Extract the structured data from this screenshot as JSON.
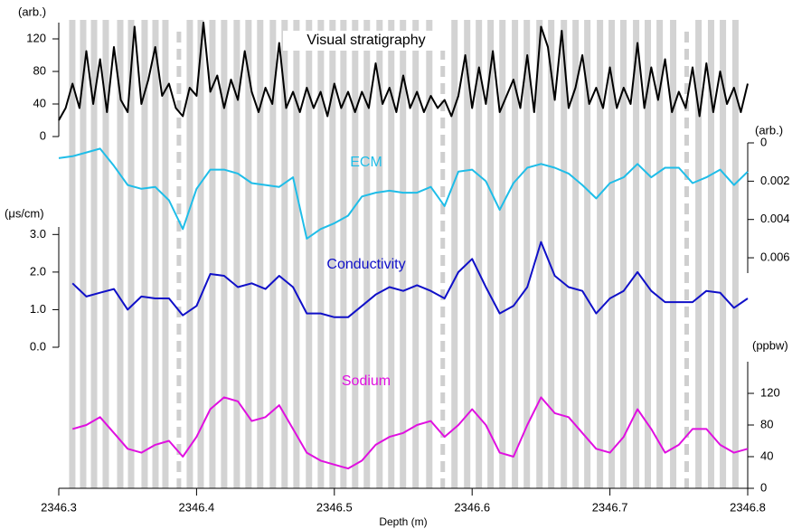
{
  "chart_data": [
    {
      "type": "line",
      "y_axis_side": "left",
      "ylabel": "(arb.)",
      "series": [
        {
          "name": "Visual stratigraphy",
          "color": "#000000",
          "values": [
            20,
            35,
            65,
            35,
            105,
            40,
            95,
            30,
            110,
            45,
            30,
            135,
            40,
            70,
            110,
            50,
            65,
            35,
            25,
            60,
            50,
            140,
            55,
            75,
            35,
            70,
            45,
            105,
            55,
            30,
            60,
            40,
            115,
            35,
            55,
            30,
            60,
            35,
            55,
            25,
            65,
            35,
            55,
            30,
            55,
            35,
            90,
            40,
            60,
            30,
            75,
            35,
            55,
            30,
            50,
            35,
            45,
            25,
            50,
            100,
            35,
            85,
            40,
            105,
            30,
            50,
            70,
            35,
            100,
            30,
            135,
            110,
            45,
            130,
            35,
            60,
            100,
            40,
            60,
            35,
            85,
            35,
            60,
            40,
            115,
            35,
            85,
            45,
            95,
            30,
            55,
            35,
            85,
            25,
            90,
            30,
            80,
            40,
            60,
            30,
            65
          ]
        }
      ],
      "x": [
        2346.3,
        2346.305,
        2346.31,
        2346.315,
        2346.32,
        2346.325,
        2346.33,
        2346.335,
        2346.34,
        2346.345,
        2346.35,
        2346.355,
        2346.36,
        2346.365,
        2346.37,
        2346.375,
        2346.38,
        2346.385,
        2346.39,
        2346.395,
        2346.4,
        2346.405,
        2346.41,
        2346.415,
        2346.42,
        2346.425,
        2346.43,
        2346.435,
        2346.44,
        2346.445,
        2346.45,
        2346.455,
        2346.46,
        2346.465,
        2346.47,
        2346.475,
        2346.48,
        2346.485,
        2346.49,
        2346.495,
        2346.5,
        2346.505,
        2346.51,
        2346.515,
        2346.52,
        2346.525,
        2346.53,
        2346.535,
        2346.54,
        2346.545,
        2346.55,
        2346.555,
        2346.56,
        2346.565,
        2346.57,
        2346.575,
        2346.58,
        2346.585,
        2346.59,
        2346.595,
        2346.6,
        2346.605,
        2346.61,
        2346.615,
        2346.62,
        2346.625,
        2346.63,
        2346.635,
        2346.64,
        2346.645,
        2346.65,
        2346.655,
        2346.66,
        2346.665,
        2346.67,
        2346.675,
        2346.68,
        2346.685,
        2346.69,
        2346.695,
        2346.7,
        2346.705,
        2346.71,
        2346.715,
        2346.72,
        2346.725,
        2346.73,
        2346.735,
        2346.74,
        2346.745,
        2346.75,
        2346.755,
        2346.76,
        2346.765,
        2346.77,
        2346.775,
        2346.78,
        2346.785,
        2346.79,
        2346.795,
        2346.8
      ],
      "xlim": [
        2346.3,
        2346.8
      ],
      "ylim": [
        0,
        140
      ],
      "yticks": [
        0,
        40,
        80,
        120
      ]
    },
    {
      "type": "line",
      "y_axis_side": "right",
      "y_reversed": true,
      "ylabel": "(arb.)",
      "series": [
        {
          "name": "ECM",
          "color": "#1fbde8",
          "values": [
            0.0008,
            0.0007,
            0.0005,
            0.0003,
            0.0012,
            0.0022,
            0.0024,
            0.0023,
            0.003,
            0.0045,
            0.0024,
            0.0014,
            0.0014,
            0.0016,
            0.0021,
            0.0022,
            0.0023,
            0.0018,
            0.005,
            0.0045,
            0.0042,
            0.0038,
            0.0028,
            0.0026,
            0.0025,
            0.0026,
            0.0026,
            0.0023,
            0.0033,
            0.0015,
            0.0014,
            0.002,
            0.0035,
            0.0021,
            0.0013,
            0.0011,
            0.0013,
            0.0016,
            0.0022,
            0.0029,
            0.0021,
            0.0018,
            0.0011,
            0.0018,
            0.0013,
            0.0013,
            0.0021,
            0.0018,
            0.0014,
            0.0022,
            0.0015
          ]
        }
      ],
      "x": [
        2346.3,
        2346.31,
        2346.32,
        2346.33,
        2346.34,
        2346.35,
        2346.36,
        2346.37,
        2346.38,
        2346.39,
        2346.4,
        2346.41,
        2346.42,
        2346.43,
        2346.44,
        2346.45,
        2346.46,
        2346.47,
        2346.48,
        2346.49,
        2346.5,
        2346.51,
        2346.52,
        2346.53,
        2346.54,
        2346.55,
        2346.56,
        2346.57,
        2346.58,
        2346.59,
        2346.6,
        2346.61,
        2346.62,
        2346.63,
        2346.64,
        2346.65,
        2346.66,
        2346.67,
        2346.68,
        2346.69,
        2346.7,
        2346.71,
        2346.72,
        2346.73,
        2346.74,
        2346.75,
        2346.76,
        2346.77,
        2346.78,
        2346.79,
        2346.8
      ],
      "xlim": [
        2346.3,
        2346.8
      ],
      "ylim": [
        0,
        0.0068
      ],
      "yticks": [
        0,
        0.002,
        0.004,
        0.006
      ]
    },
    {
      "type": "line",
      "y_axis_side": "left",
      "ylabel": "(μs/cm)",
      "series": [
        {
          "name": "Conductivity",
          "color": "#1010c8",
          "values": [
            1.7,
            1.35,
            1.45,
            1.55,
            1.0,
            1.35,
            1.3,
            1.3,
            0.85,
            1.1,
            1.95,
            1.9,
            1.6,
            1.7,
            1.55,
            1.9,
            1.6,
            0.9,
            0.9,
            0.8,
            0.8,
            1.1,
            1.4,
            1.6,
            1.5,
            1.65,
            1.5,
            1.3,
            2.0,
            2.35,
            1.6,
            0.9,
            1.1,
            1.6,
            2.8,
            1.9,
            1.6,
            1.5,
            0.9,
            1.3,
            1.5,
            2.0,
            1.5,
            1.2,
            1.2,
            1.2,
            1.5,
            1.45,
            1.05,
            1.3
          ]
        }
      ],
      "x": [
        2346.31,
        2346.32,
        2346.33,
        2346.34,
        2346.35,
        2346.36,
        2346.37,
        2346.38,
        2346.39,
        2346.4,
        2346.41,
        2346.42,
        2346.43,
        2346.44,
        2346.45,
        2346.46,
        2346.47,
        2346.48,
        2346.49,
        2346.5,
        2346.51,
        2346.52,
        2346.53,
        2346.54,
        2346.55,
        2346.56,
        2346.57,
        2346.58,
        2346.59,
        2346.6,
        2346.61,
        2346.62,
        2346.63,
        2346.64,
        2346.65,
        2346.66,
        2346.67,
        2346.68,
        2346.69,
        2346.7,
        2346.71,
        2346.72,
        2346.73,
        2346.74,
        2346.75,
        2346.76,
        2346.77,
        2346.78,
        2346.79,
        2346.8
      ],
      "xlim": [
        2346.3,
        2346.8
      ],
      "ylim": [
        0,
        3.2
      ],
      "yticks": [
        {
          "value": 0,
          "label": "0.0"
        },
        {
          "value": 1,
          "label": "1.0"
        },
        {
          "value": 2,
          "label": "2.0"
        },
        {
          "value": 3,
          "label": "3.0"
        }
      ]
    },
    {
      "type": "line",
      "y_axis_side": "right",
      "ylabel": "(ppbw)",
      "xlabel": "Depth (m)",
      "series": [
        {
          "name": "Sodium",
          "color": "#e010e0",
          "values": [
            75,
            80,
            90,
            70,
            50,
            45,
            55,
            60,
            40,
            65,
            100,
            115,
            110,
            85,
            90,
            105,
            75,
            45,
            35,
            30,
            25,
            35,
            55,
            65,
            70,
            80,
            85,
            65,
            80,
            100,
            80,
            45,
            40,
            80,
            115,
            95,
            90,
            70,
            50,
            45,
            65,
            100,
            75,
            45,
            55,
            75,
            75,
            55,
            45,
            50
          ]
        }
      ],
      "x": [
        2346.31,
        2346.32,
        2346.33,
        2346.34,
        2346.35,
        2346.36,
        2346.37,
        2346.38,
        2346.39,
        2346.4,
        2346.41,
        2346.42,
        2346.43,
        2346.44,
        2346.45,
        2346.46,
        2346.47,
        2346.48,
        2346.49,
        2346.5,
        2346.51,
        2346.52,
        2346.53,
        2346.54,
        2346.55,
        2346.56,
        2346.57,
        2346.58,
        2346.59,
        2346.6,
        2346.61,
        2346.62,
        2346.63,
        2346.64,
        2346.65,
        2346.66,
        2346.67,
        2346.68,
        2346.69,
        2346.7,
        2346.71,
        2346.72,
        2346.73,
        2346.74,
        2346.75,
        2346.76,
        2346.77,
        2346.78,
        2346.79,
        2346.8
      ],
      "xlim": [
        2346.3,
        2346.8
      ],
      "xticks": [
        2346.3,
        2346.4,
        2346.5,
        2346.6,
        2346.7,
        2346.8
      ],
      "ylim": [
        0,
        160
      ],
      "yticks": [
        0,
        40,
        80,
        120
      ],
      "layers": [
        2346.3098,
        2346.3177,
        2346.3256,
        2346.3341,
        2346.3446,
        2346.3525,
        2346.3623,
        2346.3702,
        2346.3774,
        2346.3951,
        2346.403,
        2346.4115,
        2346.42,
        2346.4292,
        2346.4377,
        2346.4462,
        2346.4554,
        2346.4639,
        2346.4725,
        2346.4816,
        2346.4902,
        2346.4987,
        2346.5066,
        2346.5151,
        2346.5236,
        2346.5328,
        2346.5413,
        2346.5498,
        2346.559,
        2346.5689,
        2346.5872,
        2346.5964,
        2346.6049,
        2346.6134,
        2346.622,
        2346.6311,
        2346.6397,
        2346.6489,
        2346.6574,
        2346.6666,
        2346.6751,
        2346.6836,
        2346.6928,
        2346.7013,
        2346.7098,
        2346.719,
        2346.7275,
        2346.7361,
        2346.7459,
        2346.7643,
        2346.7734,
        2346.782,
        2346.7911
      ],
      "dashed_layers": [
        2346.3872,
        2346.5787,
        2346.7557
      ]
    }
  ]
}
